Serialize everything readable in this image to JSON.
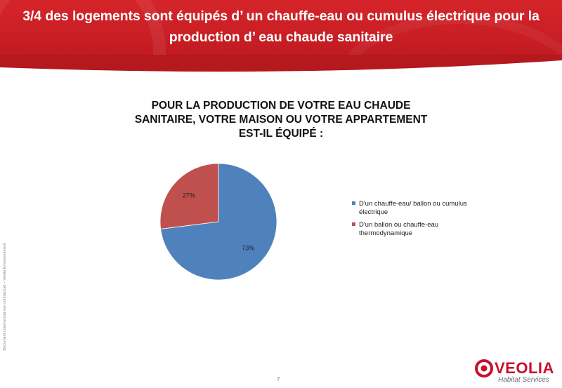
{
  "slide": {
    "title": "3/4 des logements sont équipés d’ un chauffe-eau ou cumulus électrique pour la production d’ eau chaude sanitaire",
    "page_number": "7",
    "side_note": "Document commercial non contractuel – Veolia Environnement",
    "brand": {
      "name": "VEOLIA",
      "subtitle": "Habitat Services",
      "color": "#c8102e"
    },
    "header_color": "#c61d23"
  },
  "chart_data": {
    "type": "pie",
    "title": "POUR LA PRODUCTION DE VOTRE EAU CHAUDE SANITAIRE, VOTRE MAISON OU VOTRE APPARTEMENT EST-IL ÉQUIPÉ :",
    "title_lines": [
      "POUR LA PRODUCTION DE VOTRE EAU CHAUDE",
      "SANITAIRE, VOTRE MAISON OU VOTRE APPARTEMENT",
      "EST-IL ÉQUIPÉ :"
    ],
    "slices": [
      {
        "name": "D'un chauffe-eau/ ballon ou cumulus électrique",
        "legend_lines": [
          "D'un chauffe-eau/ ballon ou cumulus",
          "électrique"
        ],
        "value": 73,
        "label": "73%",
        "color": "#4f81bd"
      },
      {
        "name": "D'un ballon ou chauffe-eau thermodynamique",
        "legend_lines": [
          "D'un ballon ou chauffe-eau",
          "thermodynamique"
        ],
        "value": 27,
        "label": "27%",
        "color": "#c0504d"
      }
    ],
    "legend_position": "right"
  }
}
